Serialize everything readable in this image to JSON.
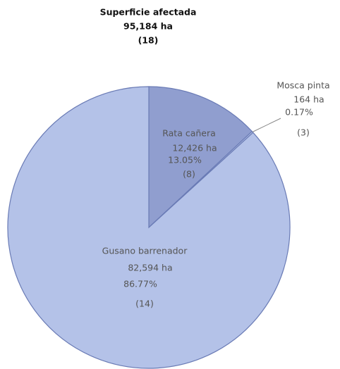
{
  "chart_data": {
    "type": "pie",
    "title": "Superficie afectada",
    "subtitle": [
      "95,184 ha",
      "(18)"
    ],
    "categories": [
      "Rata cañera",
      "Mosca pinta",
      "Gusano barrenador"
    ],
    "values": [
      12426,
      164,
      82594
    ],
    "value_labels": [
      "12,426 ha",
      "164 ha",
      "82,594 ha"
    ],
    "percent_labels": [
      "13.05%",
      "0.17%",
      "86.77%"
    ],
    "count_labels": [
      "(8)",
      "(3)",
      "(14)"
    ],
    "colors": [
      "#909ecf",
      "#b4c2e8",
      "#b4c2e8"
    ]
  }
}
